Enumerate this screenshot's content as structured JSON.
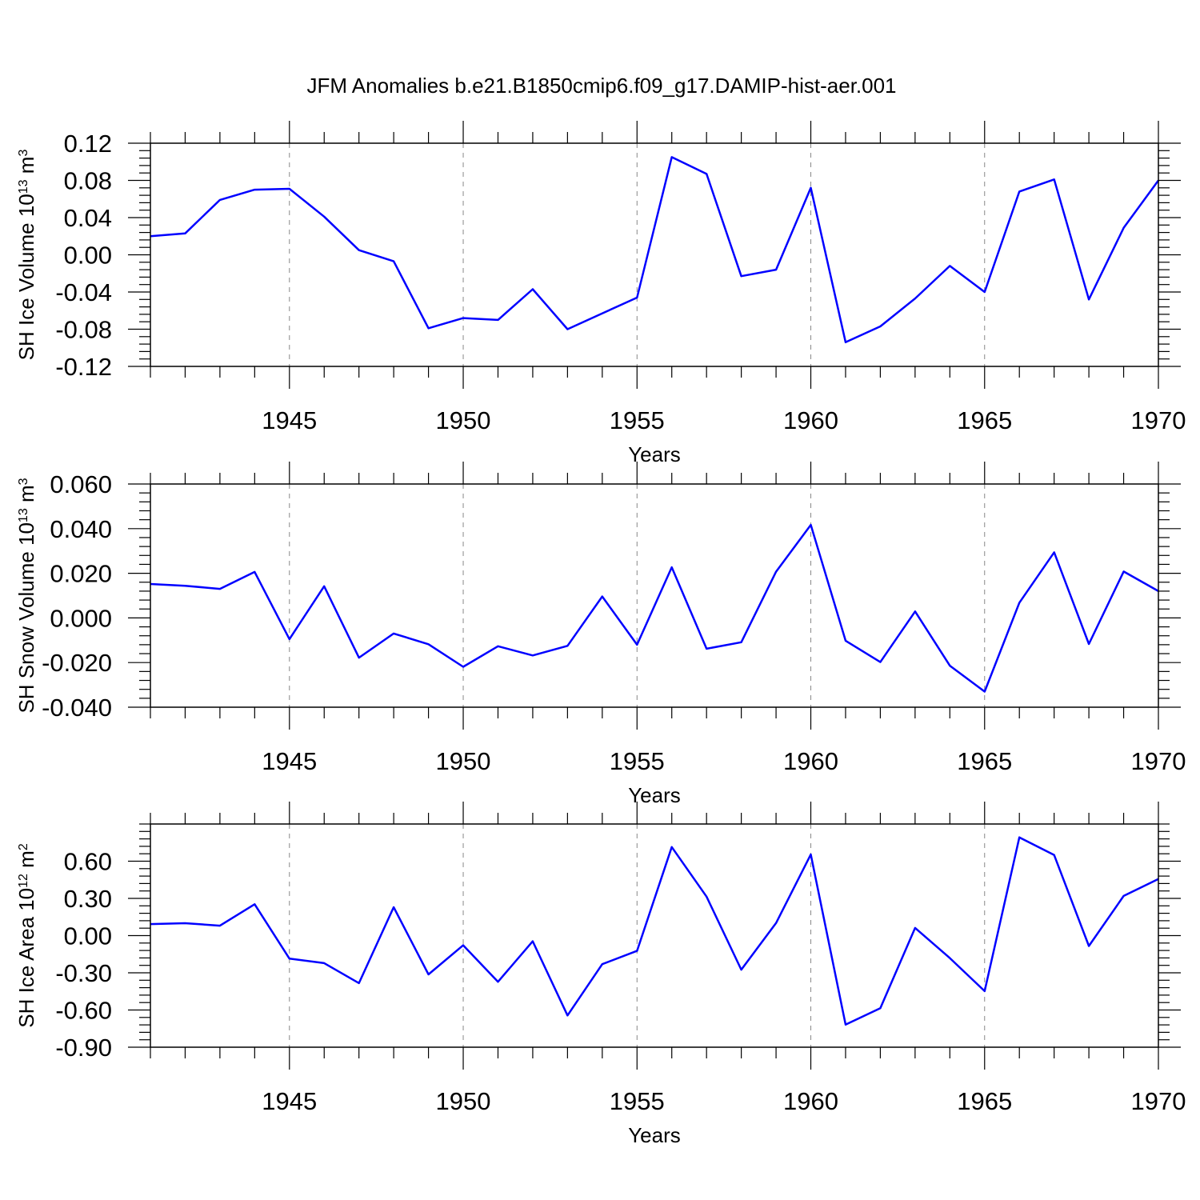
{
  "title": "JFM Anomalies b.e21.B1850cmip6.f09_g17.DAMIP-hist-aer.001",
  "colors": {
    "line": "#0000ff",
    "axis": "#000000",
    "grid": "#888888"
  },
  "chart_data": [
    {
      "type": "line",
      "ylabel_main": "SH Ice Volume 10",
      "ylabel_exp": "13",
      "ylabel_unit": " m",
      "ylabel_unit_exp": "3",
      "xlabel": "Years",
      "xlim": [
        1941,
        1970
      ],
      "ylim": [
        -0.12,
        0.12
      ],
      "x_ticks": [
        1945,
        1950,
        1955,
        1960,
        1965,
        1970
      ],
      "y_ticks": [
        "0.12",
        "0.08",
        "0.04",
        "0.00",
        "-0.04",
        "-0.08",
        "-0.12"
      ],
      "y_tick_values": [
        0.12,
        0.08,
        0.04,
        0.0,
        -0.04,
        -0.08,
        -0.12
      ],
      "y_minor_step": 0.008,
      "grid": "dashed vertical at major x ticks",
      "x": [
        1941,
        1942,
        1943,
        1944,
        1945,
        1946,
        1947,
        1948,
        1949,
        1950,
        1951,
        1952,
        1953,
        1954,
        1955,
        1956,
        1957,
        1958,
        1959,
        1960,
        1961,
        1962,
        1963,
        1964,
        1965,
        1966,
        1967,
        1968,
        1969,
        1970
      ],
      "values": [
        0.02,
        0.023,
        0.059,
        0.07,
        0.071,
        0.041,
        0.005,
        -0.007,
        -0.079,
        -0.068,
        -0.07,
        -0.037,
        -0.08,
        -0.063,
        -0.046,
        0.105,
        0.087,
        -0.023,
        -0.016,
        0.072,
        -0.094,
        -0.077,
        -0.047,
        -0.012,
        -0.04,
        0.068,
        0.081,
        -0.048,
        0.029,
        0.08
      ]
    },
    {
      "type": "line",
      "ylabel_main": "SH Snow Volume 10",
      "ylabel_exp": "13",
      "ylabel_unit": " m",
      "ylabel_unit_exp": "3",
      "xlabel": "Years",
      "xlim": [
        1941,
        1970
      ],
      "ylim": [
        -0.04,
        0.06
      ],
      "x_ticks": [
        1945,
        1950,
        1955,
        1960,
        1965,
        1970
      ],
      "y_ticks": [
        "0.060",
        "0.040",
        "0.020",
        "0.000",
        "-0.020",
        "-0.040"
      ],
      "y_tick_values": [
        0.06,
        0.04,
        0.02,
        0.0,
        -0.02,
        -0.04
      ],
      "y_minor_step": 0.004,
      "grid": "dashed vertical at major x ticks",
      "x": [
        1941,
        1942,
        1943,
        1944,
        1945,
        1946,
        1947,
        1948,
        1949,
        1950,
        1951,
        1952,
        1953,
        1954,
        1955,
        1956,
        1957,
        1958,
        1959,
        1960,
        1961,
        1962,
        1963,
        1964,
        1965,
        1966,
        1967,
        1968,
        1969,
        1970
      ],
      "values": [
        0.0152,
        0.0144,
        0.013,
        0.0206,
        -0.0095,
        0.0142,
        -0.0178,
        -0.007,
        -0.0118,
        -0.0219,
        -0.0127,
        -0.0168,
        -0.0125,
        0.0096,
        -0.012,
        0.0227,
        -0.0138,
        -0.0109,
        0.0207,
        0.0417,
        -0.0102,
        -0.0198,
        0.0029,
        -0.0214,
        -0.033,
        0.0068,
        0.0294,
        -0.0117,
        0.0208,
        0.012
      ]
    },
    {
      "type": "line",
      "ylabel_main": "SH Ice Area 10",
      "ylabel_exp": "12",
      "ylabel_unit": " m",
      "ylabel_unit_exp": "2",
      "xlabel": "Years",
      "xlim": [
        1941,
        1970
      ],
      "ylim": [
        -0.9,
        0.9
      ],
      "x_ticks": [
        1945,
        1950,
        1955,
        1960,
        1965,
        1970
      ],
      "y_ticks": [
        "0.60",
        "0.30",
        "0.00",
        "-0.30",
        "-0.60",
        "-0.90"
      ],
      "y_tick_values": [
        0.6,
        0.3,
        0.0,
        -0.3,
        -0.6,
        -0.9
      ],
      "y_minor_step": 0.06,
      "grid": "dashed vertical at major x ticks",
      "x": [
        1941,
        1942,
        1943,
        1944,
        1945,
        1946,
        1947,
        1948,
        1949,
        1950,
        1951,
        1952,
        1953,
        1954,
        1955,
        1956,
        1957,
        1958,
        1959,
        1960,
        1961,
        1962,
        1963,
        1964,
        1965,
        1966,
        1967,
        1968,
        1969,
        1970
      ],
      "values": [
        0.093,
        0.1,
        0.08,
        0.253,
        -0.186,
        -0.222,
        -0.383,
        0.229,
        -0.313,
        -0.078,
        -0.372,
        -0.046,
        -0.644,
        -0.23,
        -0.123,
        0.714,
        0.314,
        -0.275,
        0.101,
        0.654,
        -0.718,
        -0.585,
        0.062,
        -0.181,
        -0.448,
        0.792,
        0.65,
        -0.084,
        0.32,
        0.456
      ]
    }
  ]
}
